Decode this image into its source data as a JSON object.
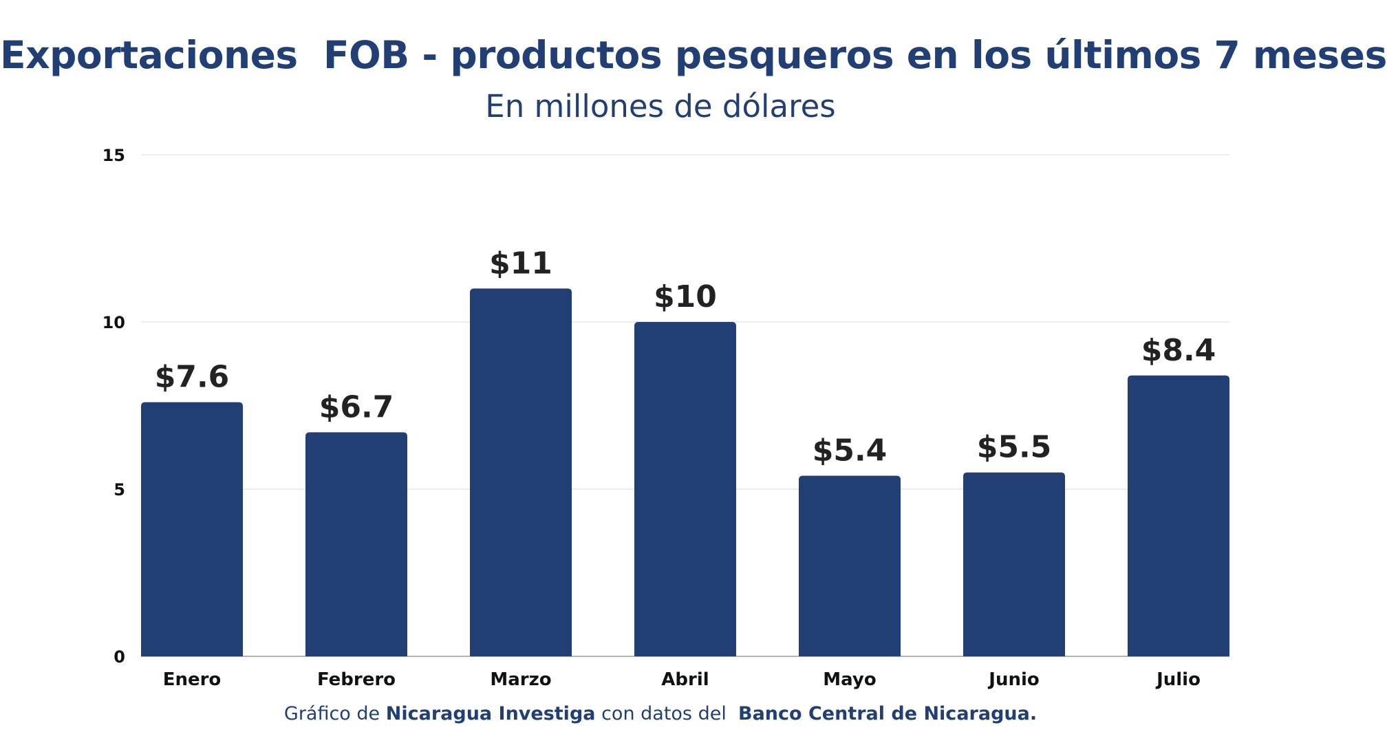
{
  "title": "Exportaciones  FOB - productos pesqueros en los últimos 7 meses",
  "subtitle": "En millones de dólares",
  "footer": {
    "prefix": "Gráfico de ",
    "source_author": "Nicaragua Investiga",
    "middle": " con datos del  ",
    "source_data": "Banco Central de Nicaragua."
  },
  "colors": {
    "bar": "#213f75",
    "title": "#213f75",
    "grid": "#e6e6e6",
    "axis_text": "#111111",
    "value_label": "#222222"
  },
  "chart_data": {
    "type": "bar",
    "categories": [
      "Enero",
      "Febrero",
      "Marzo",
      "Abril",
      "Mayo",
      "Junio",
      "Julio"
    ],
    "values": [
      7.6,
      6.7,
      11,
      10,
      5.4,
      5.5,
      8.4
    ],
    "value_labels": [
      "$7.6",
      "$6.7",
      "$11",
      "$10",
      "$5.4",
      "$5.5",
      "$8.4"
    ],
    "yticks": [
      0,
      5,
      10,
      15
    ],
    "ylim": [
      0,
      15
    ],
    "title": "Exportaciones  FOB - productos pesqueros en los últimos 7 meses",
    "subtitle": "En millones de dólares",
    "xlabel": "",
    "ylabel": "",
    "grid": true,
    "legend": "none"
  }
}
